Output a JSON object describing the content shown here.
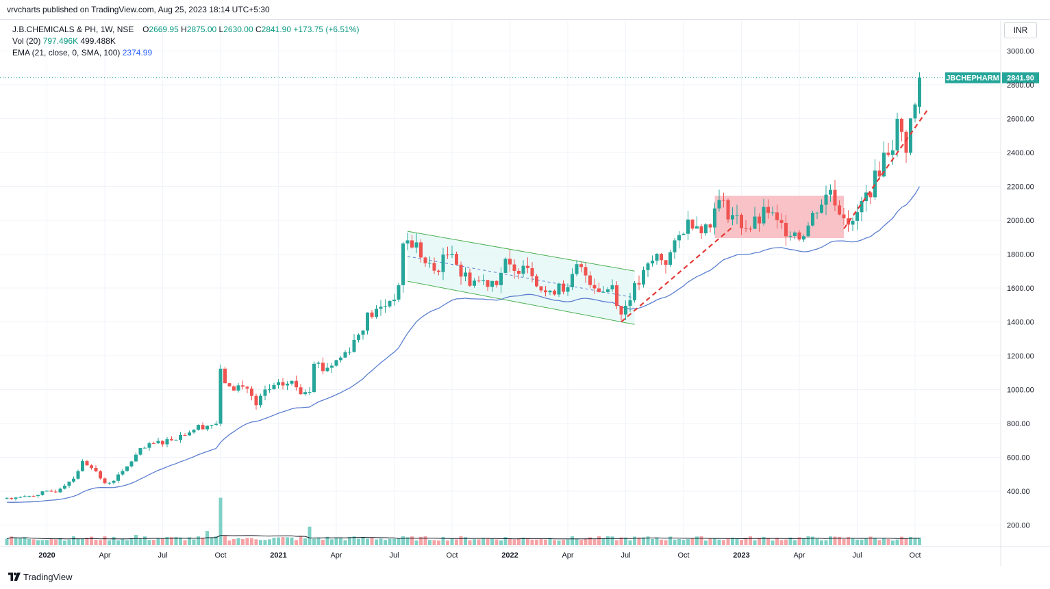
{
  "header": {
    "published_text": "vrvcharts published on TradingView.com, Aug 25, 2023 18:14 UTC+5:30"
  },
  "legend": {
    "symbol_line": "J.B.CHEMICALS & PH, 1W, NSE",
    "open_label": "O",
    "open": "2669.95",
    "high_label": "H",
    "high": "2875.00",
    "low_label": "L",
    "low": "2630.00",
    "close_label": "C",
    "close": "2841.90",
    "change": "+173.75 (+6.51%)",
    "vol_label": "Vol (20)",
    "vol_value": "797.496K",
    "vol_ma": "499.488K",
    "ema_label": "EMA (21, close, 0, SMA, 100)",
    "ema_value": "2374.99"
  },
  "currency": "INR",
  "price_tag": {
    "symbol": "JBCHEPHARM",
    "price": "2841.90"
  },
  "footer": {
    "brand": "TradingView"
  },
  "colors": {
    "up": "#26a69a",
    "down": "#ef5350",
    "ema": "#5b7fcf",
    "volume_up": "#7fd1c6",
    "volume_down": "#f5a3a6",
    "channel_fill": "#e0f7f5",
    "channel_line": "#4caf50",
    "box_fill": "#f7b7bd",
    "trendline": "#e53935"
  },
  "chart_data": {
    "type": "candlestick",
    "timeframe": "1W",
    "ylim": [
      100,
      3100
    ],
    "y_ticks": [
      200,
      400,
      600,
      800,
      1000,
      1200,
      1400,
      1600,
      1800,
      2000,
      2200,
      2400,
      2600,
      2800,
      3000
    ],
    "y_tick_labels": [
      "200.00",
      "400.00",
      "600.00",
      "800.00",
      "1000.00",
      "1200.00",
      "1400.00",
      "1600.00",
      "1800.00",
      "2000.00",
      "2200.00",
      "2400.00",
      "2600.00",
      "2800.00",
      "3000.00"
    ],
    "x_ticks": [
      {
        "label": "2020",
        "week": 9,
        "bold": true
      },
      {
        "label": "Apr",
        "week": 22,
        "bold": false
      },
      {
        "label": "Jul",
        "week": 35,
        "bold": false
      },
      {
        "label": "Oct",
        "week": 48,
        "bold": false
      },
      {
        "label": "2021",
        "week": 61,
        "bold": true
      },
      {
        "label": "Apr",
        "week": 74,
        "bold": false
      },
      {
        "label": "Jul",
        "week": 87,
        "bold": false
      },
      {
        "label": "Oct",
        "week": 100,
        "bold": false
      },
      {
        "label": "2022",
        "week": 113,
        "bold": true
      },
      {
        "label": "Apr",
        "week": 126,
        "bold": false
      },
      {
        "label": "Jul",
        "week": 139,
        "bold": false
      },
      {
        "label": "Oct",
        "week": 152,
        "bold": false
      },
      {
        "label": "2023",
        "week": 165,
        "bold": true
      },
      {
        "label": "Apr",
        "week": 178,
        "bold": false
      },
      {
        "label": "Jul",
        "week": 191,
        "bold": false
      },
      {
        "label": "Oct",
        "week": 204,
        "bold": false
      }
    ],
    "close_anchors": [
      [
        0,
        360
      ],
      [
        4,
        365
      ],
      [
        8,
        390
      ],
      [
        11,
        400
      ],
      [
        15,
        480
      ],
      [
        17,
        570
      ],
      [
        19,
        550
      ],
      [
        22,
        440
      ],
      [
        24,
        470
      ],
      [
        26,
        510
      ],
      [
        28,
        580
      ],
      [
        30,
        640
      ],
      [
        33,
        680
      ],
      [
        36,
        700
      ],
      [
        39,
        730
      ],
      [
        43,
        780
      ],
      [
        47,
        800
      ],
      [
        48,
        1100
      ],
      [
        50,
        1000
      ],
      [
        52,
        1020
      ],
      [
        54,
        1010
      ],
      [
        56,
        900
      ],
      [
        58,
        990
      ],
      [
        60,
        1010
      ],
      [
        62,
        1030
      ],
      [
        64,
        1040
      ],
      [
        66,
        990
      ],
      [
        68,
        1010
      ],
      [
        69,
        1180
      ],
      [
        71,
        1120
      ],
      [
        73,
        1150
      ],
      [
        75,
        1190
      ],
      [
        77,
        1250
      ],
      [
        79,
        1330
      ],
      [
        81,
        1430
      ],
      [
        83,
        1460
      ],
      [
        85,
        1500
      ],
      [
        87,
        1560
      ],
      [
        88,
        1580
      ],
      [
        89,
        1880
      ],
      [
        92,
        1850
      ],
      [
        94,
        1740
      ],
      [
        96,
        1700
      ],
      [
        98,
        1760
      ],
      [
        100,
        1840
      ],
      [
        102,
        1680
      ],
      [
        104,
        1650
      ],
      [
        106,
        1640
      ],
      [
        108,
        1640
      ],
      [
        110,
        1650
      ],
      [
        112,
        1740
      ],
      [
        114,
        1680
      ],
      [
        116,
        1770
      ],
      [
        118,
        1700
      ],
      [
        120,
        1600
      ],
      [
        122,
        1550
      ],
      [
        124,
        1640
      ],
      [
        126,
        1580
      ],
      [
        128,
        1720
      ],
      [
        130,
        1680
      ],
      [
        132,
        1620
      ],
      [
        134,
        1580
      ],
      [
        136,
        1620
      ],
      [
        138,
        1440
      ],
      [
        140,
        1560
      ],
      [
        142,
        1630
      ],
      [
        144,
        1720
      ],
      [
        146,
        1790
      ],
      [
        148,
        1760
      ],
      [
        150,
        1840
      ],
      [
        152,
        1960
      ],
      [
        154,
        2000
      ],
      [
        156,
        1970
      ],
      [
        158,
        1960
      ],
      [
        159,
        2120
      ],
      [
        161,
        2080
      ],
      [
        163,
        2030
      ],
      [
        165,
        1980
      ],
      [
        167,
        1960
      ],
      [
        169,
        2000
      ],
      [
        171,
        2060
      ],
      [
        173,
        1970
      ],
      [
        175,
        1950
      ],
      [
        177,
        1940
      ],
      [
        178,
        1910
      ],
      [
        180,
        1970
      ],
      [
        182,
        2080
      ],
      [
        184,
        2140
      ],
      [
        185,
        2190
      ],
      [
        187,
        2060
      ],
      [
        188,
        2050
      ],
      [
        190,
        1960
      ],
      [
        191,
        2040
      ],
      [
        193,
        2140
      ],
      [
        195,
        2240
      ],
      [
        197,
        2380
      ],
      [
        199,
        2460
      ],
      [
        200,
        2560
      ],
      [
        202,
        2440
      ],
      [
        203,
        2580
      ],
      [
        204,
        2668
      ],
      [
        205,
        2841.9
      ]
    ],
    "last_candle": {
      "open": 2669.95,
      "high": 2875.0,
      "low": 2630.0,
      "close": 2841.9
    },
    "volume_spikes": [
      {
        "week": 48,
        "volume": 2600
      },
      {
        "week": 45,
        "volume": 780
      },
      {
        "week": 49,
        "volume": 500
      },
      {
        "week": 68,
        "volume": 1020
      },
      {
        "week": 29,
        "volume": 560
      },
      {
        "week": 54,
        "volume": 400
      },
      {
        "week": 86,
        "volume": 350
      },
      {
        "week": 197,
        "volume": 380
      }
    ],
    "annotations": [
      {
        "type": "descending_channel",
        "upper": [
          [
            90,
            1935
          ],
          [
            141,
            1700
          ]
        ],
        "lower": [
          [
            90,
            1640
          ],
          [
            141,
            1385
          ]
        ]
      },
      {
        "type": "range_box",
        "from_week": 159,
        "to_week": 188,
        "top": 2145,
        "bottom": 1895
      },
      {
        "type": "dashed_trendline",
        "points": [
          [
            138,
            1400
          ],
          [
            163,
            1960
          ]
        ]
      },
      {
        "type": "dashed_trendline",
        "points": [
          [
            188,
            1950
          ],
          [
            207,
            2660
          ]
        ]
      }
    ]
  }
}
